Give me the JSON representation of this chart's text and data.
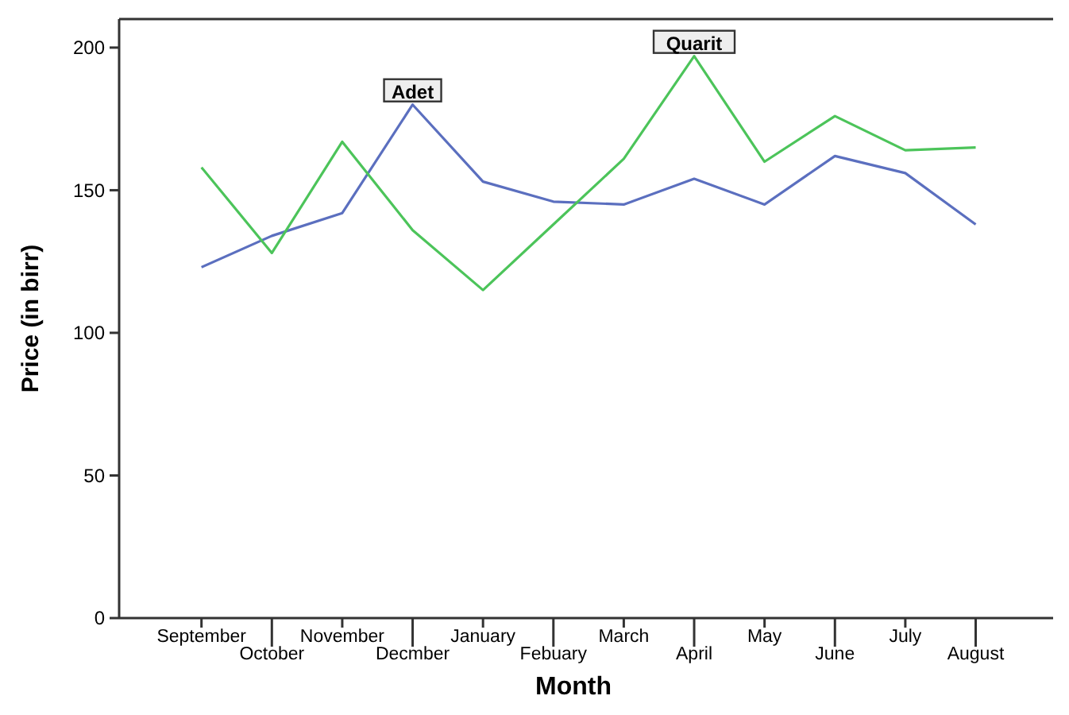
{
  "chart_data": {
    "type": "line",
    "xlabel": "Month",
    "ylabel": "Price (in birr)",
    "categories": [
      "September",
      "October",
      "November",
      "Decmber",
      "January",
      "Febuary",
      "March",
      "April",
      "May",
      "June",
      "July",
      "August"
    ],
    "series": [
      {
        "color": "#5b6fbf",
        "values": [
          123,
          134,
          142,
          180,
          153,
          146,
          145,
          154,
          145,
          162,
          156,
          138
        ]
      },
      {
        "color": "#4cc45a",
        "values": [
          158,
          128,
          167,
          136,
          115,
          138,
          161,
          197,
          160,
          176,
          164,
          165
        ]
      }
    ],
    "ylim": [
      0,
      210
    ],
    "yticks": [
      0,
      50,
      100,
      150,
      200
    ],
    "grid": false,
    "marker": "none",
    "line_style": "solid",
    "annotations": [
      {
        "text": "Adet",
        "x": "Decmber",
        "y": 180
      },
      {
        "text": "Quarit",
        "x": "April",
        "y": 197
      }
    ]
  }
}
